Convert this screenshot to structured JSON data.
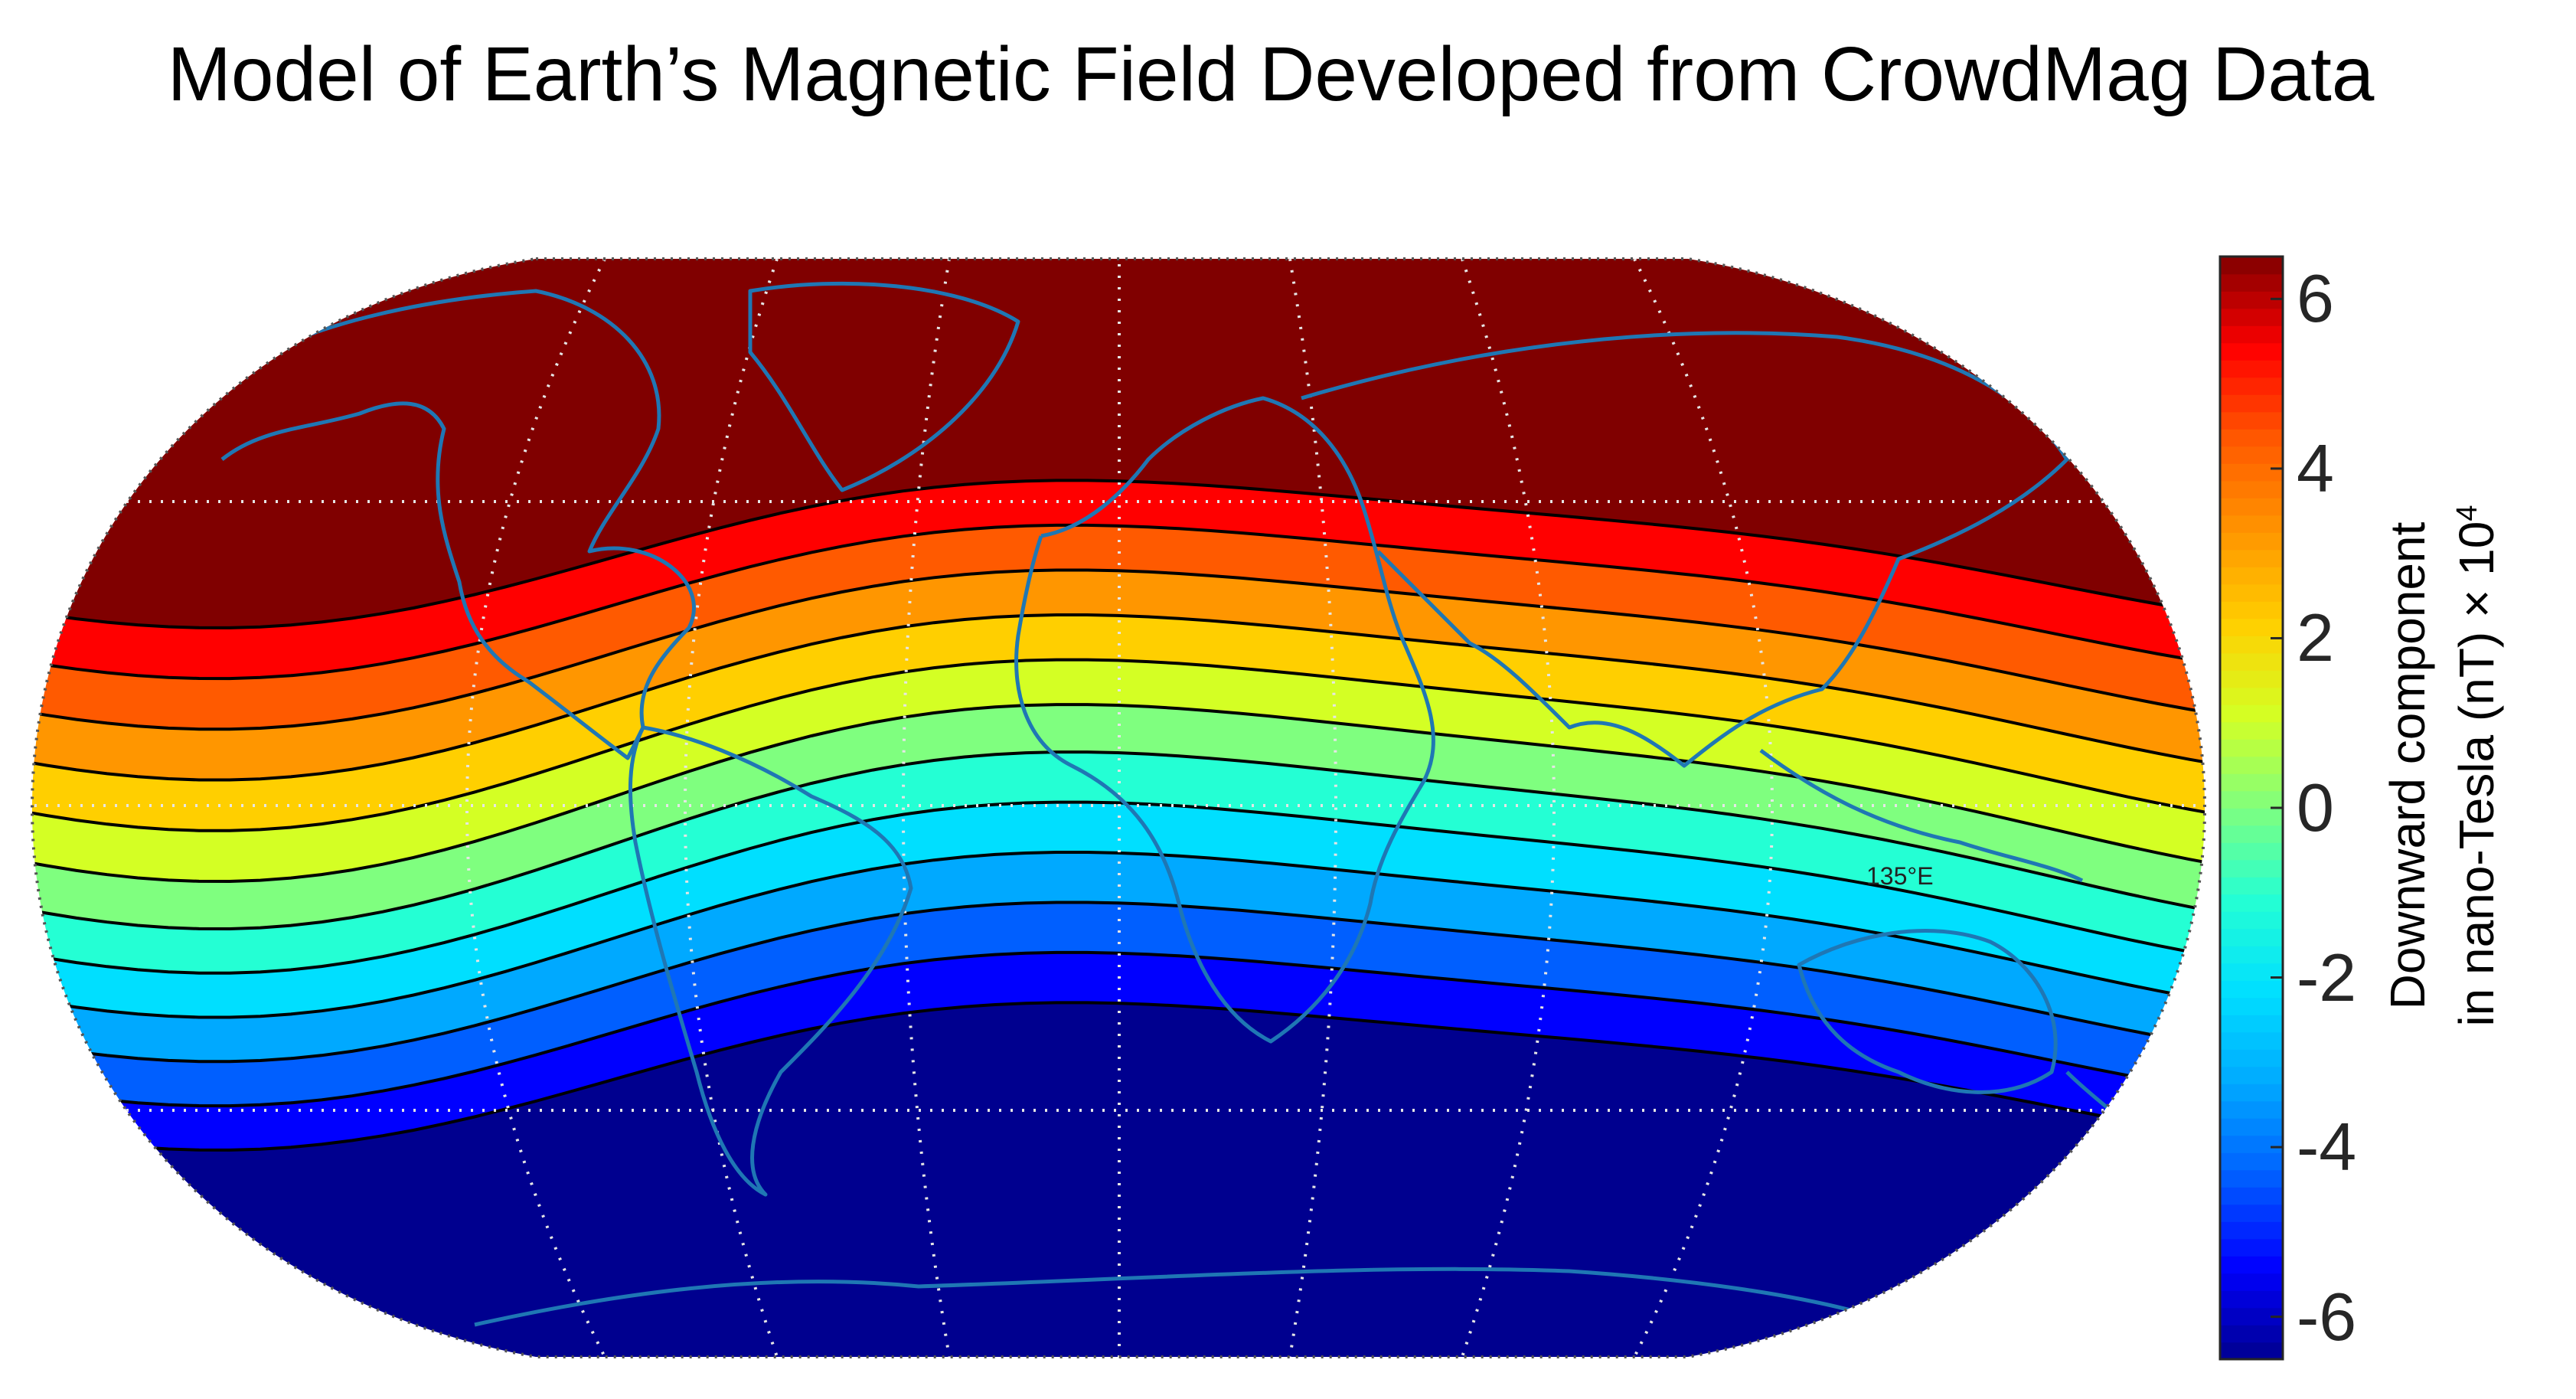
{
  "title": "Model of Earth’s Magnetic Field Developed from CrowdMag Data",
  "colorbar": {
    "label_line1": "Downward component",
    "label_line2_prefix": "in nano-Tesla (nT) × 10",
    "label_exponent": "4",
    "ticks": [
      "6",
      "4",
      "2",
      "0",
      "-2",
      "-4",
      "-6"
    ],
    "tick_values": [
      6,
      4,
      2,
      0,
      -2,
      -4,
      -6
    ],
    "range": [
      -6.5,
      6.5
    ],
    "levels": [
      -6.5,
      -5.5,
      -4.5,
      -3.5,
      -2.5,
      -1.5,
      -0.5,
      0.5,
      1.5,
      2.5,
      3.5,
      4.5,
      5.5,
      6.5
    ],
    "colors": [
      "#00008f",
      "#0000ff",
      "#005fff",
      "#00a9ff",
      "#00dfff",
      "#24ffd4",
      "#7fff7f",
      "#d4ff24",
      "#ffcf00",
      "#ff9600",
      "#ff5a00",
      "#ff0000",
      "#800000"
    ]
  },
  "meridian_label": "135°E",
  "map": {
    "projection": "Robinson",
    "gridlines": "dotted",
    "coastline_color": "#1f77b4",
    "contour_line_color": "#000000"
  }
}
